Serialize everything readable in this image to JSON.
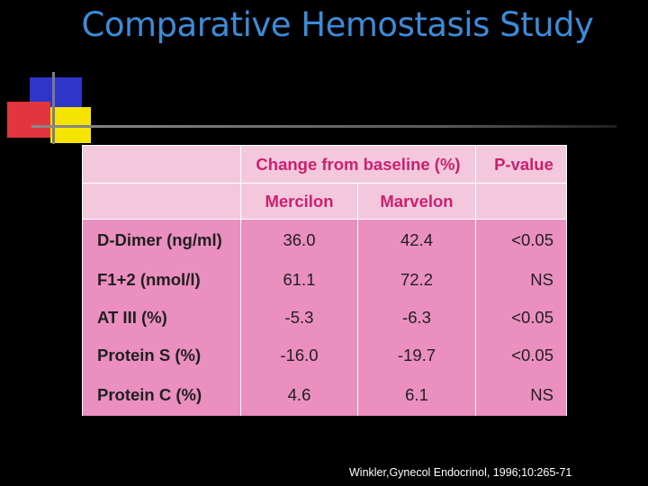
{
  "title": "Comparative Hemostasis Study",
  "table": {
    "header_group": "Change from baseline (%)",
    "header_pvalue": "P-value",
    "col1": "Mercilon",
    "col2": "Marvelon",
    "rows": [
      {
        "label": "D-Dimer (ng/ml)",
        "mercilon": "36.0",
        "marvelon": "42.4",
        "p": "<0.05"
      },
      {
        "label": "F1+2 (nmol/l)",
        "mercilon": "61.1",
        "marvelon": "72.2",
        "p": "NS"
      },
      {
        "label": "AT III (%)",
        "mercilon": "-5.3",
        "marvelon": "-6.3",
        "p": "<0.05"
      },
      {
        "label": "Protein S (%)",
        "mercilon": "-16.0",
        "marvelon": "-19.7",
        "p": "<0.05"
      },
      {
        "label": "Protein C (%)",
        "mercilon": "4.6",
        "marvelon": "6.1",
        "p": "NS"
      }
    ]
  },
  "source": "Winkler,Gynecol Endocrinol, 1996;10:265-71",
  "colors": {
    "title": "#3d8bd8",
    "header_text": "#cc1f6e",
    "header_bg": "#f3c8dd",
    "body_bg": "#ea8fbf"
  }
}
